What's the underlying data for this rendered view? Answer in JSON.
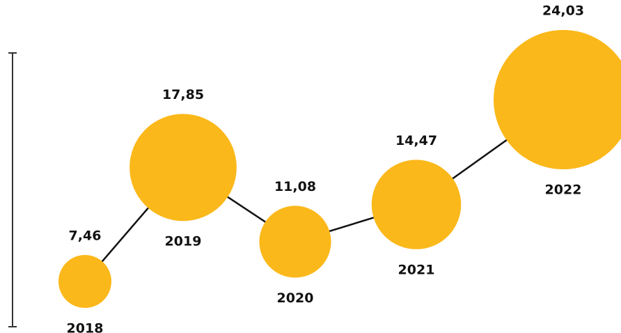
{
  "chart_data": {
    "type": "scatter",
    "x": [
      "2018",
      "2019",
      "2020",
      "2021",
      "2022"
    ],
    "values": [
      7.46,
      17.85,
      11.08,
      14.47,
      24.03
    ],
    "value_labels": [
      "7,46",
      "17,85",
      "11,08",
      "14,47",
      "24,03"
    ],
    "title": "",
    "xlabel": "",
    "ylabel": "",
    "grid": false,
    "legend": "none",
    "connector_line": true,
    "marker_size_encodes_value": true
  },
  "colors": {
    "bubble": "#FBB81A",
    "line": "#111111",
    "axis": "#333333",
    "text": "#111111"
  }
}
